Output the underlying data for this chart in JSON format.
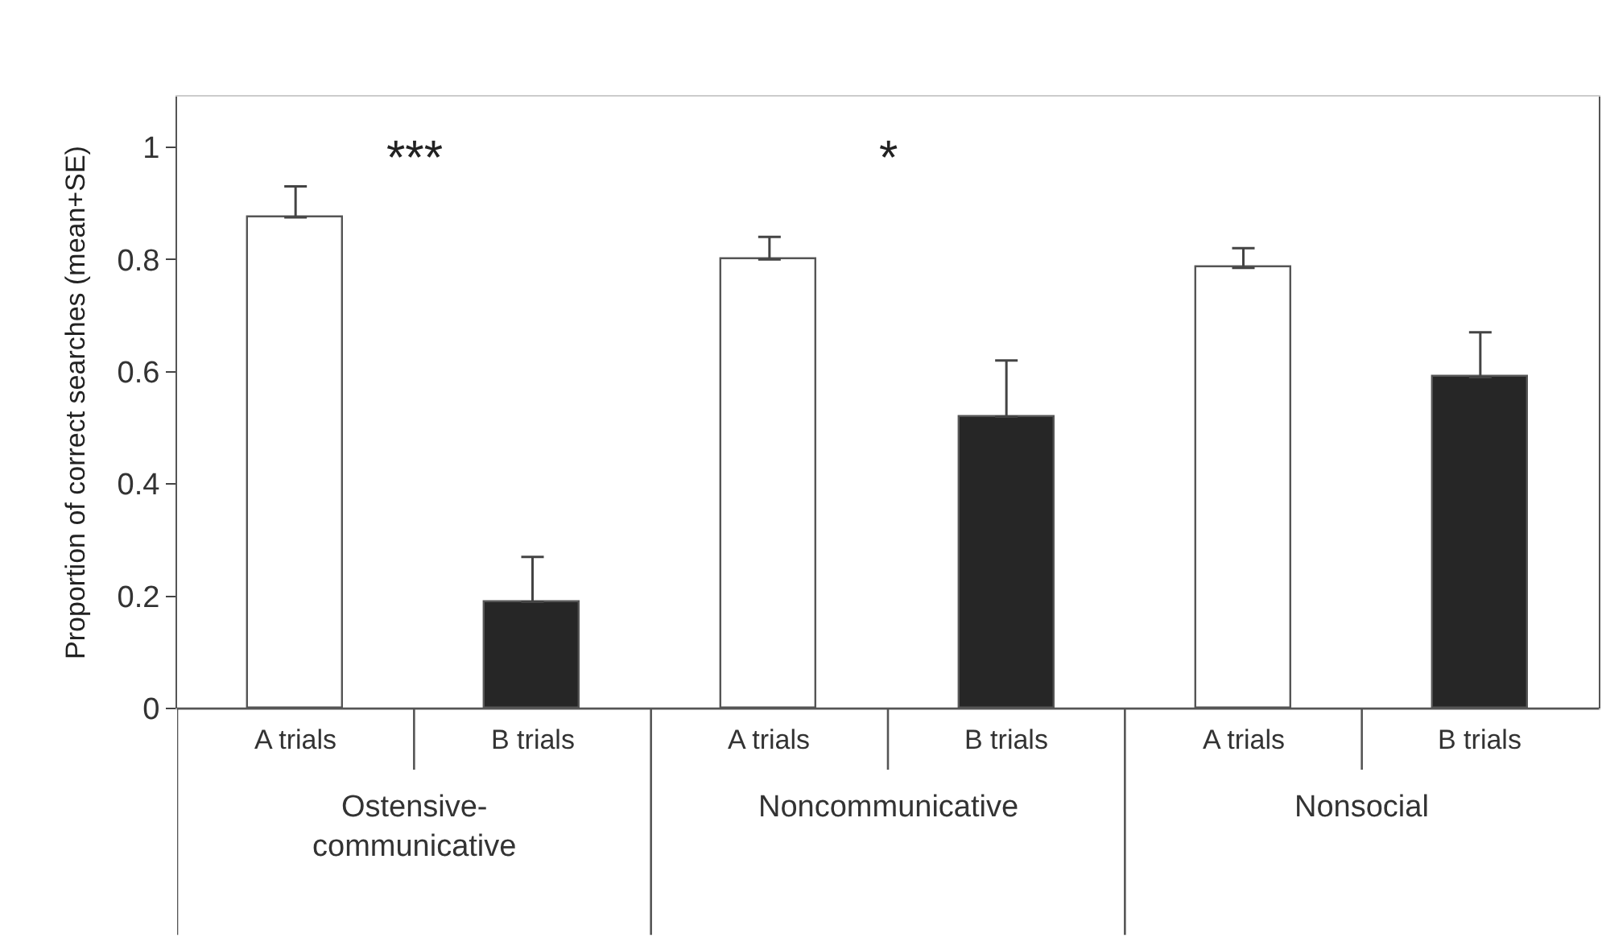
{
  "chart_data": {
    "type": "bar",
    "ylabel": "Proportion of correct searches (mean+SE)",
    "categories": [
      "A trials",
      "B trials",
      "A trials",
      "B trials",
      "A trials",
      "B trials"
    ],
    "values": [
      0.875,
      0.19,
      0.8,
      0.52,
      0.785,
      0.59
    ],
    "colors": [
      "#ffffff",
      "#262626",
      "#ffffff",
      "#262626",
      "#ffffff",
      "#262626"
    ],
    "errors": [
      [
        0.875,
        0.93
      ],
      [
        0.19,
        0.27
      ],
      [
        0.8,
        0.84
      ],
      [
        0.52,
        0.62
      ],
      [
        0.785,
        0.82
      ],
      [
        0.59,
        0.67
      ]
    ],
    "ylim": [
      0,
      1.09
    ],
    "yticks": [
      0,
      0.2,
      0.4,
      0.6,
      0.8,
      1
    ],
    "annotations": [
      "***",
      "*",
      "Ostensive-\ncommunicative",
      "Noncommunicative",
      "Nonsocial"
    ]
  }
}
